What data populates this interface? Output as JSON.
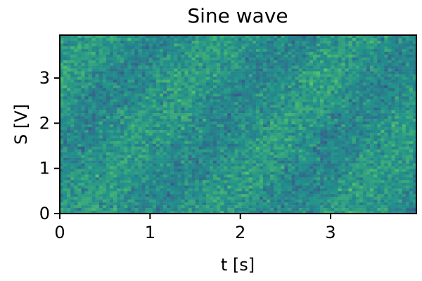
{
  "chart_data": {
    "type": "heatmap",
    "title": "Sine wave",
    "xlabel": "t [s]",
    "ylabel": "S [V]",
    "xlim": [
      0,
      3.95
    ],
    "ylim": [
      0,
      3.95
    ],
    "x_ticks": [
      0,
      1,
      2,
      3
    ],
    "y_ticks": [
      0,
      1,
      2,
      3
    ],
    "x_tick_labels": [
      "0",
      "1",
      "2",
      "3"
    ],
    "y_tick_labels": [
      "0",
      "1",
      "2",
      "3"
    ],
    "colormap": "viridis",
    "grid": false,
    "colors": {
      "viridis_low": "#440154",
      "viridis_mid": "#21918c",
      "viridis_high": "#fde725"
    }
  }
}
